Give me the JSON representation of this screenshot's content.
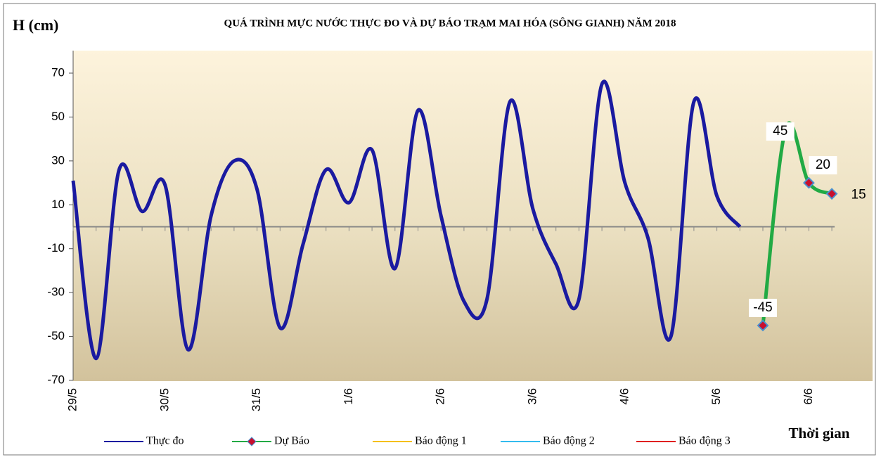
{
  "chart_data": {
    "type": "line",
    "title": "QUÁ TRÌNH MỰC NƯỚC THỰC ĐO VÀ DỰ BÁO TRẠM MAI HÓA (SÔNG GIANH) NĂM 2018",
    "y_label": "H (cm)",
    "x_label": "Thời gian",
    "categories": [
      "29/5",
      null,
      null,
      null,
      "30/5",
      null,
      null,
      null,
      "31/5",
      null,
      null,
      null,
      "1/6",
      null,
      null,
      null,
      "2/6",
      null,
      null,
      null,
      "3/6",
      null,
      null,
      null,
      "4/6",
      null,
      null,
      null,
      "5/6",
      null,
      null,
      null,
      "6/6",
      null
    ],
    "series": [
      {
        "name": "Thực đo",
        "color": "#1a1aa0",
        "values": [
          21,
          -60,
          26,
          7,
          19,
          -56,
          5,
          30,
          17,
          -46,
          -8,
          26,
          11,
          35,
          -19,
          53,
          5,
          -34,
          -33,
          57,
          8,
          -17,
          -33,
          65,
          20,
          -5,
          -50,
          57,
          14,
          0,
          null,
          null,
          null,
          null
        ]
      },
      {
        "name": "Dự Báo",
        "color": "#22aa44",
        "marker_color": "#c8102e",
        "values": [
          null,
          null,
          null,
          null,
          null,
          null,
          null,
          null,
          null,
          null,
          null,
          null,
          null,
          null,
          null,
          null,
          null,
          null,
          null,
          null,
          null,
          null,
          null,
          null,
          null,
          null,
          null,
          null,
          null,
          null,
          -45,
          45,
          20,
          15
        ]
      },
      {
        "name": "Báo động 1",
        "color": "#f5c000",
        "values": [
          null,
          null,
          null,
          null,
          null,
          null,
          null,
          null,
          null,
          null,
          null,
          null,
          null,
          null,
          null,
          null,
          null,
          null,
          null,
          null,
          null,
          null,
          null,
          null,
          null,
          null,
          null,
          null,
          null,
          null,
          null,
          null,
          null,
          null
        ]
      },
      {
        "name": "Báo động 2",
        "color": "#33bbee",
        "values": [
          null,
          null,
          null,
          null,
          null,
          null,
          null,
          null,
          null,
          null,
          null,
          null,
          null,
          null,
          null,
          null,
          null,
          null,
          null,
          null,
          null,
          null,
          null,
          null,
          null,
          null,
          null,
          null,
          null,
          null,
          null,
          null,
          null,
          null
        ]
      },
      {
        "name": "Báo động 3",
        "color": "#e02020",
        "values": [
          null,
          null,
          null,
          null,
          null,
          null,
          null,
          null,
          null,
          null,
          null,
          null,
          null,
          null,
          null,
          null,
          null,
          null,
          null,
          null,
          null,
          null,
          null,
          null,
          null,
          null,
          null,
          null,
          null,
          null,
          null,
          null,
          null,
          null
        ]
      }
    ],
    "ylim": [
      -70,
      70
    ],
    "yticks": [
      -70,
      -50,
      -30,
      -10,
      10,
      30,
      50,
      70
    ],
    "legend": "bottom",
    "smooth": true
  }
}
